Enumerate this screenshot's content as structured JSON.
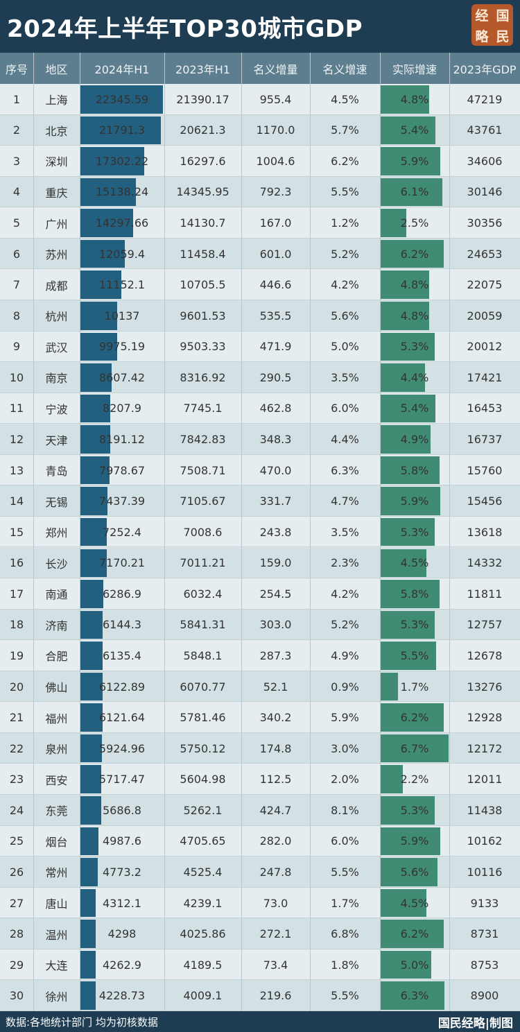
{
  "header": {
    "title": "2024年上半年TOP30城市GDP",
    "logo": [
      "经",
      "国",
      "略",
      "民"
    ]
  },
  "table": {
    "columns": [
      "序号",
      "地区",
      "2024年H1",
      "2023年H1",
      "名义增量",
      "名义增速",
      "实际增速",
      "2023年GDP"
    ],
    "rows": [
      [
        "1",
        "上海",
        "22345.59",
        "21390.17",
        "955.4",
        "4.5%",
        "4.8%",
        "47219"
      ],
      [
        "2",
        "北京",
        "21791.3",
        "20621.3",
        "1170.0",
        "5.7%",
        "5.4%",
        "43761"
      ],
      [
        "3",
        "深圳",
        "17302.22",
        "16297.6",
        "1004.6",
        "6.2%",
        "5.9%",
        "34606"
      ],
      [
        "4",
        "重庆",
        "15138.24",
        "14345.95",
        "792.3",
        "5.5%",
        "6.1%",
        "30146"
      ],
      [
        "5",
        "广州",
        "14297.66",
        "14130.7",
        "167.0",
        "1.2%",
        "2.5%",
        "30356"
      ],
      [
        "6",
        "苏州",
        "12059.4",
        "11458.4",
        "601.0",
        "5.2%",
        "6.2%",
        "24653"
      ],
      [
        "7",
        "成都",
        "11152.1",
        "10705.5",
        "446.6",
        "4.2%",
        "4.8%",
        "22075"
      ],
      [
        "8",
        "杭州",
        "10137",
        "9601.53",
        "535.5",
        "5.6%",
        "4.8%",
        "20059"
      ],
      [
        "9",
        "武汉",
        "9975.19",
        "9503.33",
        "471.9",
        "5.0%",
        "5.3%",
        "20012"
      ],
      [
        "10",
        "南京",
        "8607.42",
        "8316.92",
        "290.5",
        "3.5%",
        "4.4%",
        "17421"
      ],
      [
        "11",
        "宁波",
        "8207.9",
        "7745.1",
        "462.8",
        "6.0%",
        "5.4%",
        "16453"
      ],
      [
        "12",
        "天津",
        "8191.12",
        "7842.83",
        "348.3",
        "4.4%",
        "4.9%",
        "16737"
      ],
      [
        "13",
        "青岛",
        "7978.67",
        "7508.71",
        "470.0",
        "6.3%",
        "5.8%",
        "15760"
      ],
      [
        "14",
        "无锡",
        "7437.39",
        "7105.67",
        "331.7",
        "4.7%",
        "5.9%",
        "15456"
      ],
      [
        "15",
        "郑州",
        "7252.4",
        "7008.6",
        "243.8",
        "3.5%",
        "5.3%",
        "13618"
      ],
      [
        "16",
        "长沙",
        "7170.21",
        "7011.21",
        "159.0",
        "2.3%",
        "4.5%",
        "14332"
      ],
      [
        "17",
        "南通",
        "6286.9",
        "6032.4",
        "254.5",
        "4.2%",
        "5.8%",
        "11811"
      ],
      [
        "18",
        "济南",
        "6144.3",
        "5841.31",
        "303.0",
        "5.2%",
        "5.3%",
        "12757"
      ],
      [
        "19",
        "合肥",
        "6135.4",
        "5848.1",
        "287.3",
        "4.9%",
        "5.5%",
        "12678"
      ],
      [
        "20",
        "佛山",
        "6122.89",
        "6070.77",
        "52.1",
        "0.9%",
        "1.7%",
        "13276"
      ],
      [
        "21",
        "福州",
        "6121.64",
        "5781.46",
        "340.2",
        "5.9%",
        "6.2%",
        "12928"
      ],
      [
        "22",
        "泉州",
        "5924.96",
        "5750.12",
        "174.8",
        "3.0%",
        "6.7%",
        "12172"
      ],
      [
        "23",
        "西安",
        "5717.47",
        "5604.98",
        "112.5",
        "2.0%",
        "2.2%",
        "12011"
      ],
      [
        "24",
        "东莞",
        "5686.8",
        "5262.1",
        "424.7",
        "8.1%",
        "5.3%",
        "11438"
      ],
      [
        "25",
        "烟台",
        "4987.6",
        "4705.65",
        "282.0",
        "6.0%",
        "5.9%",
        "10162"
      ],
      [
        "26",
        "常州",
        "4773.2",
        "4525.4",
        "247.8",
        "5.5%",
        "5.6%",
        "10116"
      ],
      [
        "27",
        "唐山",
        "4312.1",
        "4239.1",
        "73.0",
        "1.7%",
        "4.5%",
        "9133"
      ],
      [
        "28",
        "温州",
        "4298",
        "4025.86",
        "272.1",
        "6.8%",
        "6.2%",
        "8731"
      ],
      [
        "29",
        "大连",
        "4262.9",
        "4189.5",
        "73.4",
        "1.8%",
        "5.0%",
        "8753"
      ],
      [
        "30",
        "徐州",
        "4228.73",
        "4009.1",
        "219.6",
        "5.5%",
        "6.3%",
        "8900"
      ]
    ]
  },
  "footer": {
    "source": "数据:各地统计部门 均为初核数据",
    "credit": "国民经略|制图"
  }
}
